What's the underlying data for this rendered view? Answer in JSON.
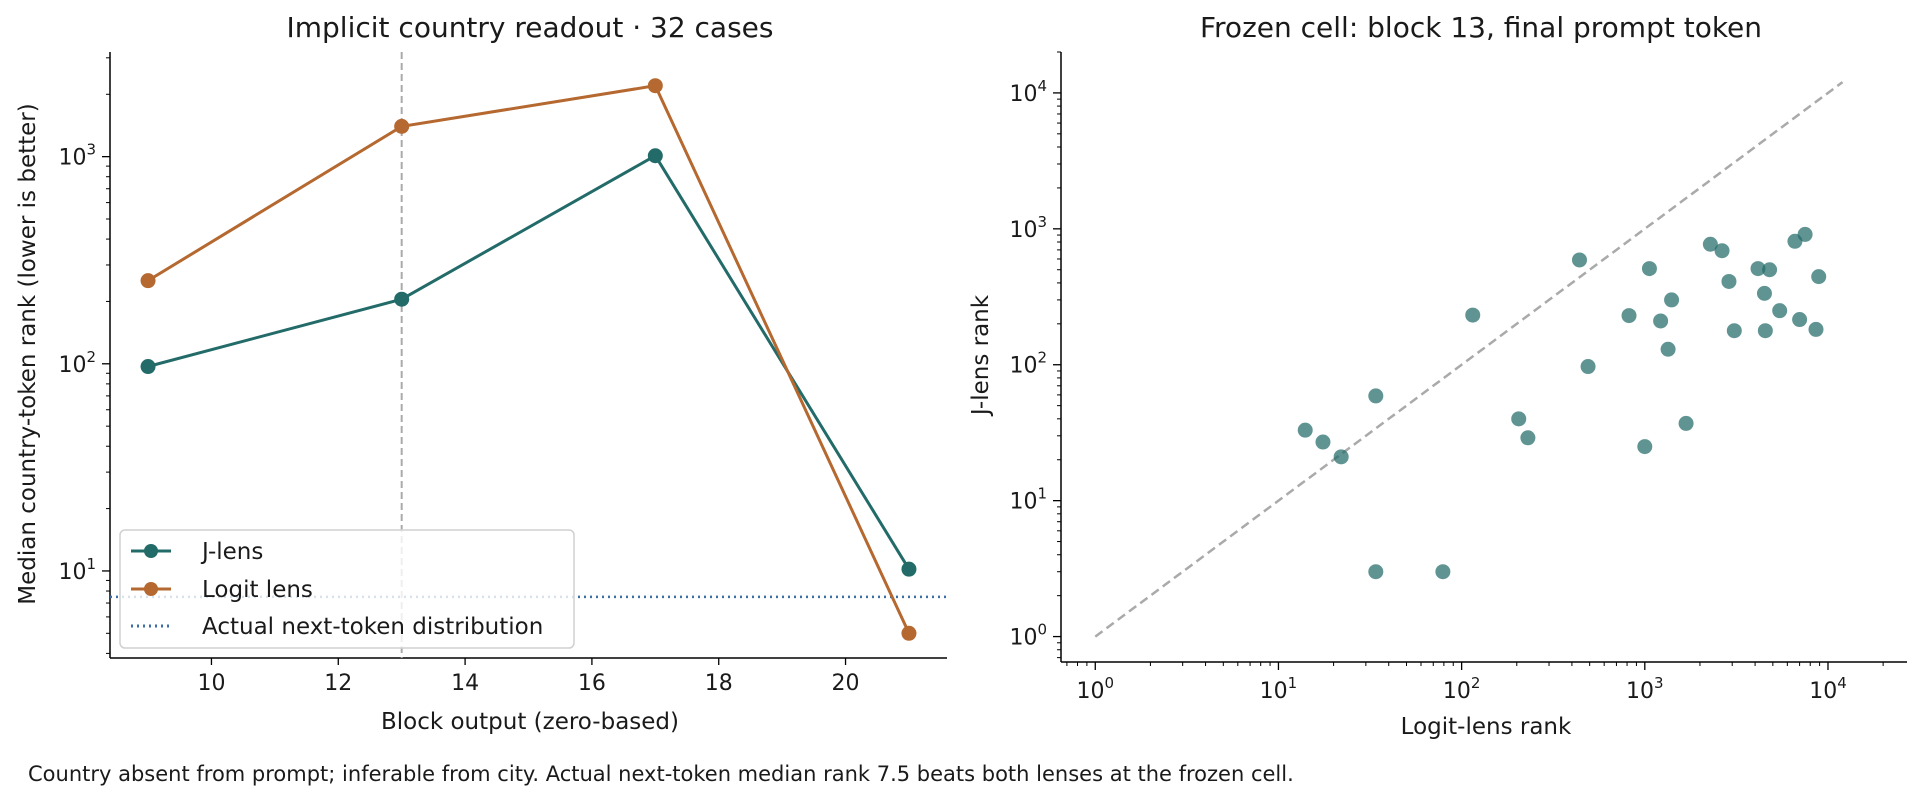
{
  "caption": "Country absent from prompt; inferable from city. Actual next-token median rank 7.5 beats both lenses at the frozen cell.",
  "colors": {
    "jlens": "#236b69",
    "logit": "#b5682f",
    "reference": "#3a6ea5",
    "diagonal": "#aaaaaa",
    "marker": "#aaaaaa"
  },
  "chart_data": [
    {
      "type": "line",
      "title": "Implicit country readout · 32 cases",
      "xlabel": "Block output (zero-based)",
      "ylabel": "Median country-token rank (lower is better)",
      "xlim": [
        8.4,
        21.6
      ],
      "ylim": [
        3.8,
        3200
      ],
      "yscale": "log",
      "xticks": [
        10,
        12,
        14,
        16,
        18,
        20
      ],
      "yticks": [
        10,
        100,
        1000
      ],
      "ytick_labels": [
        [
          "10",
          "1"
        ],
        [
          "10",
          "2"
        ],
        [
          "10",
          "3"
        ]
      ],
      "x": [
        9,
        13,
        17,
        21
      ],
      "series": [
        {
          "name": "J-lens",
          "values": [
            97,
            205,
            1010,
            10.2
          ]
        },
        {
          "name": "Logit lens",
          "values": [
            252,
            1400,
            2200,
            5
          ]
        }
      ],
      "reference_line": {
        "name": "Actual next-token distribution",
        "value": 7.5
      },
      "marker_line_x": 13,
      "legend": "lower-left",
      "grid": false
    },
    {
      "type": "scatter",
      "title": "Frozen cell: block 13, final prompt token",
      "xlabel": "Logit-lens rank",
      "ylabel": "J-lens rank",
      "xscale": "log",
      "yscale": "log",
      "xlim": [
        0.65,
        27000
      ],
      "ylim": [
        0.65,
        20000
      ],
      "xticks": [
        1,
        10,
        100,
        1000,
        10000
      ],
      "yticks": [
        1,
        10,
        100,
        1000,
        10000
      ],
      "xtick_labels": [
        [
          "10",
          "0"
        ],
        [
          "10",
          "1"
        ],
        [
          "10",
          "2"
        ],
        [
          "10",
          "3"
        ],
        [
          "10",
          "4"
        ]
      ],
      "ytick_labels": [
        [
          "10",
          "0"
        ],
        [
          "10",
          "1"
        ],
        [
          "10",
          "2"
        ],
        [
          "10",
          "3"
        ],
        [
          "10",
          "4"
        ]
      ],
      "diagonal": [
        1,
        12000
      ],
      "points": [
        [
          14,
          33
        ],
        [
          17.5,
          27
        ],
        [
          22,
          21
        ],
        [
          34,
          59
        ],
        [
          34,
          3
        ],
        [
          79,
          3
        ],
        [
          115,
          232
        ],
        [
          205,
          40
        ],
        [
          230,
          29
        ],
        [
          440,
          590
        ],
        [
          490,
          97
        ],
        [
          820,
          230
        ],
        [
          1000,
          25
        ],
        [
          1060,
          510
        ],
        [
          1220,
          210
        ],
        [
          1340,
          130
        ],
        [
          1400,
          300
        ],
        [
          1680,
          37
        ],
        [
          2280,
          770
        ],
        [
          2640,
          690
        ],
        [
          2880,
          410
        ],
        [
          3080,
          178
        ],
        [
          4150,
          510
        ],
        [
          4500,
          335
        ],
        [
          4550,
          178
        ],
        [
          4800,
          500
        ],
        [
          5450,
          250
        ],
        [
          6600,
          810
        ],
        [
          7000,
          215
        ],
        [
          7500,
          910
        ],
        [
          8600,
          182
        ],
        [
          8900,
          445
        ]
      ],
      "grid": false
    }
  ]
}
